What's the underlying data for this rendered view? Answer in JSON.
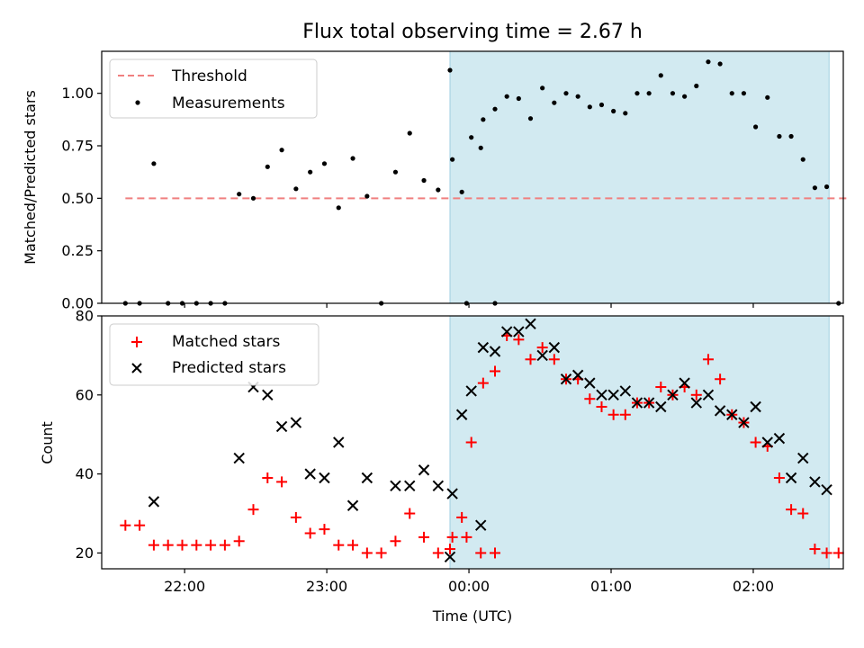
{
  "chart_data": [
    {
      "type": "scatter",
      "title": "Flux total observing time = 2.67 h",
      "xlabel": "",
      "ylabel": "Matched/Predicted stars",
      "ylim": [
        0,
        1.2
      ],
      "yticks": [
        "0.00",
        "0.25",
        "0.50",
        "0.75",
        "1.00"
      ],
      "yticks_values": [
        0,
        0.25,
        0.5,
        0.75,
        1.0
      ],
      "shaded_region": {
        "start": "23:52",
        "end": "02:32",
        "color": "#add8e6"
      },
      "threshold": {
        "name": "Threshold",
        "value": 0.5,
        "start": "21:35",
        "end": "02:40",
        "color": "#f08080",
        "style": "dashed"
      },
      "legend": {
        "position": "upper left",
        "entries": [
          "Threshold",
          "Measurements"
        ]
      },
      "series": [
        {
          "name": "Measurements",
          "color": "#000000",
          "marker": "dot",
          "points": [
            [
              "21:35",
              0.0
            ],
            [
              "21:41",
              0.0
            ],
            [
              "21:47",
              0.665
            ],
            [
              "21:53",
              0.0
            ],
            [
              "21:59",
              0.0
            ],
            [
              "22:05",
              0.0
            ],
            [
              "22:11",
              0.0
            ],
            [
              "22:17",
              0.0
            ],
            [
              "22:23",
              0.52
            ],
            [
              "22:29",
              0.5
            ],
            [
              "22:35",
              0.65
            ],
            [
              "22:41",
              0.73
            ],
            [
              "22:47",
              0.545
            ],
            [
              "22:53",
              0.625
            ],
            [
              "22:59",
              0.665
            ],
            [
              "23:05",
              0.455
            ],
            [
              "23:11",
              0.69
            ],
            [
              "23:17",
              0.51
            ],
            [
              "23:23",
              0.0
            ],
            [
              "23:29",
              0.625
            ],
            [
              "23:35",
              0.81
            ],
            [
              "23:41",
              0.585
            ],
            [
              "23:47",
              0.54
            ],
            [
              "23:53",
              0.685
            ],
            [
              "23:59",
              0.0
            ],
            [
              "00:05",
              0.74
            ],
            [
              "00:11",
              0.0
            ],
            [
              "23:52",
              1.11
            ],
            [
              "23:57",
              0.53
            ],
            [
              "00:01",
              0.79
            ],
            [
              "00:06",
              0.875
            ],
            [
              "00:11",
              0.925
            ],
            [
              "00:16",
              0.985
            ],
            [
              "00:21",
              0.975
            ],
            [
              "00:26",
              0.88
            ],
            [
              "00:31",
              1.025
            ],
            [
              "00:36",
              0.955
            ],
            [
              "00:41",
              1.0
            ],
            [
              "00:46",
              0.985
            ],
            [
              "00:51",
              0.935
            ],
            [
              "00:56",
              0.945
            ],
            [
              "01:01",
              0.915
            ],
            [
              "01:06",
              0.905
            ],
            [
              "01:11",
              1.0
            ],
            [
              "01:16",
              1.0
            ],
            [
              "01:21",
              1.085
            ],
            [
              "01:26",
              1.0
            ],
            [
              "01:31",
              0.985
            ],
            [
              "01:36",
              1.035
            ],
            [
              "01:41",
              1.15
            ],
            [
              "01:46",
              1.14
            ],
            [
              "01:51",
              1.0
            ],
            [
              "01:56",
              1.0
            ],
            [
              "02:01",
              0.84
            ],
            [
              "02:06",
              0.98
            ],
            [
              "02:11",
              0.795
            ],
            [
              "02:16",
              0.795
            ],
            [
              "02:21",
              0.685
            ],
            [
              "02:26",
              0.55
            ],
            [
              "02:31",
              0.555
            ],
            [
              "02:36",
              0.0
            ]
          ]
        }
      ]
    },
    {
      "type": "scatter",
      "title": "",
      "xlabel": "Time (UTC)",
      "ylabel": "Count",
      "ylim": [
        16,
        80
      ],
      "yticks": [
        "20",
        "40",
        "60",
        "80"
      ],
      "yticks_values": [
        20,
        40,
        60,
        80
      ],
      "xticks": [
        "22:00",
        "23:00",
        "00:00",
        "01:00",
        "02:00"
      ],
      "shaded_region": {
        "start": "23:52",
        "end": "02:32",
        "color": "#add8e6"
      },
      "legend": {
        "position": "upper left",
        "entries": [
          "Matched stars",
          "Predicted stars"
        ]
      },
      "series": [
        {
          "name": "Matched stars",
          "color": "#ff0000",
          "marker": "plus",
          "points": [
            [
              "21:35",
              27
            ],
            [
              "21:41",
              27
            ],
            [
              "21:47",
              22
            ],
            [
              "21:53",
              22
            ],
            [
              "21:59",
              22
            ],
            [
              "22:05",
              22
            ],
            [
              "22:11",
              22
            ],
            [
              "22:17",
              22
            ],
            [
              "22:23",
              23
            ],
            [
              "22:29",
              31
            ],
            [
              "22:35",
              39
            ],
            [
              "22:41",
              38
            ],
            [
              "22:47",
              29
            ],
            [
              "22:53",
              25
            ],
            [
              "22:59",
              26
            ],
            [
              "23:05",
              22
            ],
            [
              "23:11",
              22
            ],
            [
              "23:17",
              20
            ],
            [
              "23:23",
              20
            ],
            [
              "23:29",
              23
            ],
            [
              "23:35",
              30
            ],
            [
              "23:41",
              24
            ],
            [
              "23:47",
              20
            ],
            [
              "23:53",
              24
            ],
            [
              "23:59",
              24
            ],
            [
              "00:05",
              20
            ],
            [
              "00:11",
              20
            ],
            [
              "23:52",
              21
            ],
            [
              "23:57",
              29
            ],
            [
              "00:01",
              48
            ],
            [
              "00:06",
              63
            ],
            [
              "00:11",
              66
            ],
            [
              "00:16",
              75
            ],
            [
              "00:21",
              74
            ],
            [
              "00:26",
              69
            ],
            [
              "00:31",
              72
            ],
            [
              "00:36",
              69
            ],
            [
              "00:41",
              64
            ],
            [
              "00:46",
              64
            ],
            [
              "00:51",
              59
            ],
            [
              "00:56",
              57
            ],
            [
              "01:01",
              55
            ],
            [
              "01:06",
              55
            ],
            [
              "01:11",
              58
            ],
            [
              "01:16",
              58
            ],
            [
              "01:21",
              62
            ],
            [
              "01:26",
              60
            ],
            [
              "01:31",
              62
            ],
            [
              "01:36",
              60
            ],
            [
              "01:41",
              69
            ],
            [
              "01:46",
              64
            ],
            [
              "01:51",
              55
            ],
            [
              "01:56",
              53
            ],
            [
              "02:01",
              48
            ],
            [
              "02:06",
              47
            ],
            [
              "02:11",
              39
            ],
            [
              "02:16",
              31
            ],
            [
              "02:21",
              30
            ],
            [
              "02:26",
              21
            ],
            [
              "02:31",
              20
            ],
            [
              "02:36",
              20
            ]
          ]
        },
        {
          "name": "Predicted stars",
          "color": "#000000",
          "marker": "x",
          "points": [
            [
              "21:47",
              33
            ],
            [
              "22:23",
              44
            ],
            [
              "22:29",
              62
            ],
            [
              "22:35",
              60
            ],
            [
              "22:41",
              52
            ],
            [
              "22:47",
              53
            ],
            [
              "22:53",
              40
            ],
            [
              "22:59",
              39
            ],
            [
              "23:05",
              48
            ],
            [
              "23:11",
              32
            ],
            [
              "23:17",
              39
            ],
            [
              "23:29",
              37
            ],
            [
              "23:35",
              37
            ],
            [
              "23:41",
              41
            ],
            [
              "23:47",
              37
            ],
            [
              "23:53",
              35
            ],
            [
              "00:05",
              27
            ],
            [
              "23:52",
              19
            ],
            [
              "23:57",
              55
            ],
            [
              "00:01",
              61
            ],
            [
              "00:06",
              72
            ],
            [
              "00:11",
              71
            ],
            [
              "00:16",
              76
            ],
            [
              "00:21",
              76
            ],
            [
              "00:26",
              78
            ],
            [
              "00:31",
              70
            ],
            [
              "00:36",
              72
            ],
            [
              "00:41",
              64
            ],
            [
              "00:46",
              65
            ],
            [
              "00:51",
              63
            ],
            [
              "00:56",
              60
            ],
            [
              "01:01",
              60
            ],
            [
              "01:06",
              61
            ],
            [
              "01:11",
              58
            ],
            [
              "01:16",
              58
            ],
            [
              "01:21",
              57
            ],
            [
              "01:26",
              60
            ],
            [
              "01:31",
              63
            ],
            [
              "01:36",
              58
            ],
            [
              "01:41",
              60
            ],
            [
              "01:46",
              56
            ],
            [
              "01:51",
              55
            ],
            [
              "01:56",
              53
            ],
            [
              "02:01",
              57
            ],
            [
              "02:06",
              48
            ],
            [
              "02:11",
              49
            ],
            [
              "02:16",
              39
            ],
            [
              "02:21",
              44
            ],
            [
              "02:26",
              38
            ],
            [
              "02:31",
              36
            ]
          ]
        }
      ]
    }
  ]
}
